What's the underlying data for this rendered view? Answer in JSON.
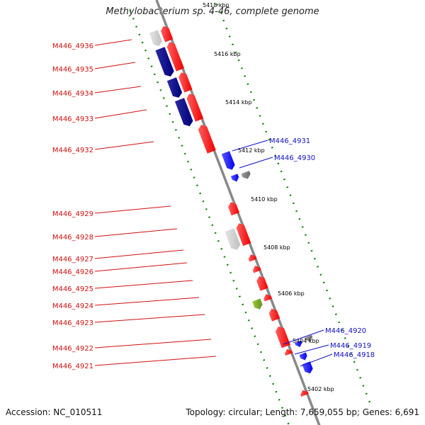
{
  "title": "Methylobacterium sp. 4-46, complete genome",
  "footer": {
    "accession": "Accession: NC_010511",
    "topology": "Topology: circular; Length: 7,659,055 bp; Genes: 6,691"
  },
  "colors": {
    "minus_strand_label": "#d01010",
    "plus_strand_label": "#1010c0",
    "red_gene": "#ee0000",
    "blue_gene": "#0000ee",
    "navy_gene": "#00007a",
    "gray_gene": "#6a6a6a",
    "light_gray_gene": "#c0c0c0",
    "olive_gene": "#6b8e23",
    "tick_color": "#118811",
    "backbone": "#888888"
  },
  "kbp_ticks": [
    "5418 kbp",
    "5416 kbp",
    "5414 kbp",
    "5412 kbp",
    "5410 kbp",
    "5408 kbp",
    "5406 kbp",
    "5404 kbp",
    "5402 kbp"
  ],
  "left_labels": [
    "M446_4936",
    "M446_4935",
    "M446_4934",
    "M446_4933",
    "M446_4932",
    "M446_4929",
    "M446_4928",
    "M446_4927",
    "M446_4926",
    "M446_4925",
    "M446_4924",
    "M446_4923",
    "M446_4922",
    "M446_4921"
  ],
  "right_labels": [
    "M446_4931",
    "M446_4930",
    "M446_4920",
    "M446_4919",
    "M446_4918"
  ]
}
